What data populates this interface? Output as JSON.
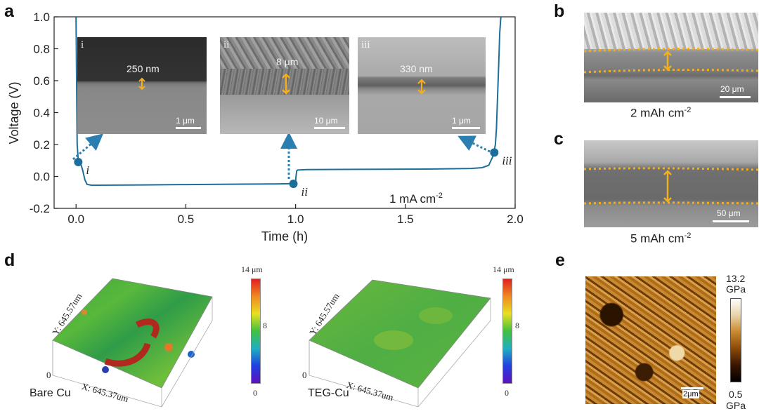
{
  "panels": {
    "a": "a",
    "b": "b",
    "c": "c",
    "d": "d",
    "e": "e"
  },
  "chart_data": {
    "type": "line",
    "xlabel": "Time (h)",
    "ylabel": "Voltage (V)",
    "xlim": [
      -0.1,
      2.0
    ],
    "ylim": [
      -0.2,
      1.0
    ],
    "xticks": [
      0.0,
      0.5,
      1.0,
      1.5,
      2.0
    ],
    "yticks": [
      -0.2,
      0.0,
      0.2,
      0.4,
      0.6,
      0.8,
      1.0
    ],
    "xtick_labels": [
      "0.0",
      "0.5",
      "1.0",
      "1.5",
      "2.0"
    ],
    "ytick_labels": [
      "-0.2",
      "0.0",
      "0.2",
      "0.4",
      "0.6",
      "0.8",
      "1.0"
    ],
    "series": [
      {
        "color": "#1d6f99",
        "x": [
          0.0,
          0.005,
          0.01,
          0.02,
          0.03,
          0.04,
          0.05,
          0.07,
          0.1,
          0.3,
          0.5,
          0.7,
          0.9,
          0.99,
          1.0,
          1.002,
          1.005,
          1.01,
          1.05,
          1.2,
          1.4,
          1.6,
          1.8,
          1.85,
          1.88,
          1.9,
          1.91,
          1.915,
          1.92,
          1.925,
          1.93,
          1.935
        ],
        "y": [
          1.0,
          0.2,
          0.1,
          0.085,
          0.04,
          -0.02,
          -0.05,
          -0.055,
          -0.055,
          -0.053,
          -0.051,
          -0.049,
          -0.047,
          -0.045,
          -0.03,
          0.0,
          0.035,
          0.04,
          0.043,
          0.044,
          0.045,
          0.046,
          0.05,
          0.055,
          0.07,
          0.13,
          0.2,
          0.3,
          0.5,
          0.7,
          0.9,
          1.0
        ]
      }
    ],
    "markers": [
      {
        "label": "i",
        "x": 0.01,
        "y": 0.09
      },
      {
        "label": "ii",
        "x": 0.99,
        "y": -0.046
      },
      {
        "label": "iii",
        "x": 1.905,
        "y": 0.15
      }
    ],
    "annotation": "1 mA cm",
    "annotation_sup": "-2"
  },
  "insets": [
    {
      "label": "i",
      "thickness": "250 nm",
      "scale": "1 μm"
    },
    {
      "label": "ii",
      "thickness": "8 μm",
      "scale": "10 μm"
    },
    {
      "label": "iii",
      "thickness": "330 nm",
      "scale": "1 μm"
    }
  ],
  "panel_b": {
    "scale": "20 μm",
    "caption": "2 mAh cm",
    "caption_sup": "-2"
  },
  "panel_c": {
    "scale": "50 μm",
    "caption": "5 mAh cm",
    "caption_sup": "-2"
  },
  "panel_d": [
    {
      "name": "Bare Cu",
      "y_axis": "Y: 645.57um",
      "x_axis": "X: 645.37um",
      "zero": "0",
      "cb_max": "14 μm",
      "cb_mid": "8",
      "cb_min": "0"
    },
    {
      "name": "TEG-Cu",
      "y_axis": "Y: 645.57um",
      "x_axis": "X: 645.37um",
      "zero": "0",
      "cb_max": "14 μm",
      "cb_mid": "8",
      "cb_min": "0"
    }
  ],
  "panel_e": {
    "scale": "2μm",
    "cb_max": "13.2",
    "cb_max_unit": "GPa",
    "cb_min": "0.5",
    "cb_min_unit": "GPa"
  },
  "colors": {
    "curve": "#1d6f99",
    "arrow": "#2a7fb0",
    "thickness_marker": "#f2b021"
  }
}
